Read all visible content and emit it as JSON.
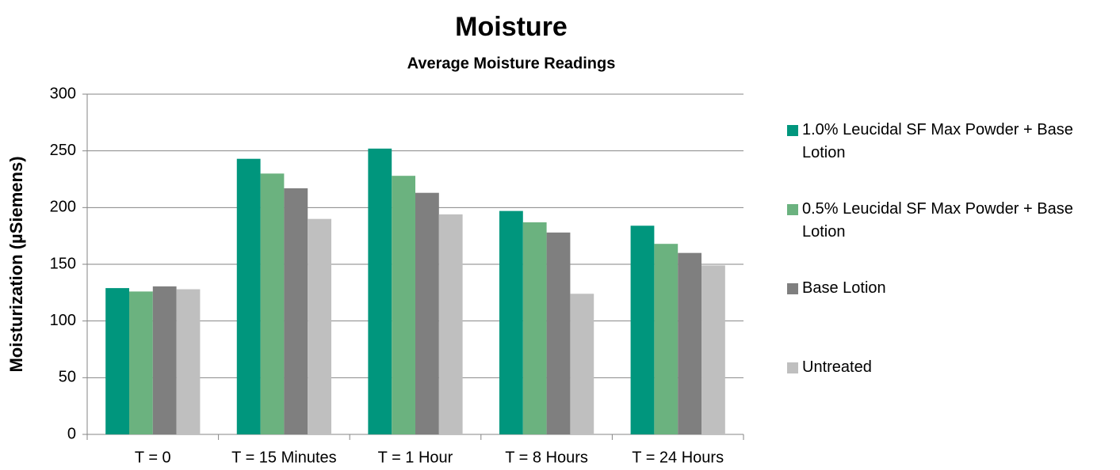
{
  "chart_data": {
    "type": "bar",
    "title": "Moisture",
    "subtitle": "Average Moisture Readings",
    "y_label": "Moisturization (µSiemens)",
    "categories": [
      "T = 0",
      "T = 15 Minutes",
      "T = 1 Hour",
      "T = 8 Hours",
      "T = 24 Hours"
    ],
    "series": [
      {
        "name": "1.0% Leucidal SF Max Powder + Base Lotion",
        "color": "#00967d",
        "values": [
          129,
          243,
          252,
          197,
          184
        ]
      },
      {
        "name": "0.5% Leucidal SF Max Powder + Base Lotion",
        "color": "#6bb27f",
        "values": [
          126,
          230,
          228,
          187,
          168
        ]
      },
      {
        "name": "Base Lotion",
        "color": "#7f7f7f",
        "values": [
          130.5,
          217,
          213,
          178,
          160
        ]
      },
      {
        "name": "Untreated",
        "color": "#bfbfbf",
        "values": [
          128,
          190,
          194,
          124,
          149
        ]
      }
    ],
    "ylim": [
      0,
      300
    ],
    "yticks": [
      0,
      50,
      100,
      150,
      200,
      250,
      300
    ],
    "grid": true,
    "legend": "right"
  }
}
